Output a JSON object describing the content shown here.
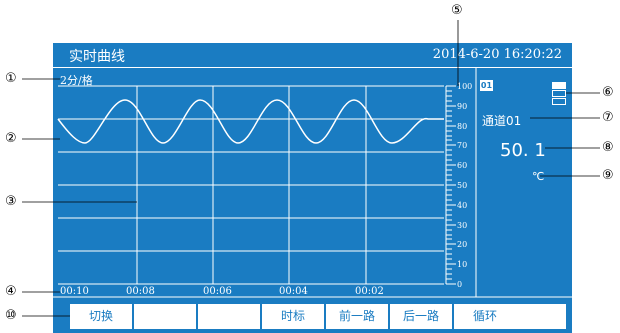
{
  "header": {
    "title": "实时曲线",
    "datetime": "2014-6-20   16:20:22"
  },
  "chart": {
    "scale": "2分/格",
    "time_labels": [
      "00:10",
      "00:08",
      "00:06",
      "00:04",
      "00:02"
    ],
    "ruler_labels": [
      "100",
      "90",
      "80",
      "70",
      "60",
      "50",
      "40",
      "30",
      "20",
      "10",
      "0"
    ]
  },
  "channel": {
    "tag": "01",
    "name": "通道01",
    "value": "50. 1",
    "unit": "℃"
  },
  "buttons": [
    "切换",
    "",
    "",
    "时标",
    "前一路",
    "后一路",
    "循环",
    ""
  ],
  "callouts": [
    "①",
    "②",
    "③",
    "④",
    "⑤",
    "⑥",
    "⑦",
    "⑧",
    "⑨",
    "⑩"
  ],
  "colors": {
    "screen": "#1a7cc2",
    "foreground": "#ffffff"
  }
}
